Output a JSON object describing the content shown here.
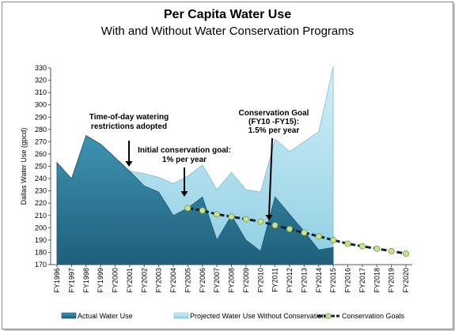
{
  "chart_data": {
    "type": "area",
    "title": "Per Capita Water Use",
    "subtitle": "With and Without Water Conservation Programs",
    "ylabel": "Dallas Water Use (gpcd)",
    "xlabel": "",
    "ylim": [
      170,
      330
    ],
    "yticks": [
      170,
      180,
      190,
      200,
      210,
      220,
      230,
      240,
      250,
      260,
      270,
      280,
      290,
      300,
      310,
      320,
      330
    ],
    "categories": [
      "FY1996",
      "FY1997",
      "FY1998",
      "FY1999",
      "FY2000",
      "FY2001",
      "FY2002",
      "FY2003",
      "FY2004",
      "FY2005",
      "FY2006",
      "FY2007",
      "FY2008",
      "FY2009",
      "FY2010",
      "FY2011",
      "FY2012",
      "FY2013",
      "FY2014",
      "FY2015",
      "FY2016",
      "FY2017",
      "FY2018",
      "FY2019",
      "FY2020"
    ],
    "series": [
      {
        "name": "Projected Water Use Without Conservation",
        "kind": "area",
        "color": "#a8dcec",
        "values": [
          253,
          240,
          275,
          268,
          257,
          246,
          244,
          241,
          236,
          242,
          251,
          231,
          245,
          231,
          229,
          272,
          262,
          270,
          278,
          331,
          null,
          null,
          null,
          null,
          null
        ]
      },
      {
        "name": "Actual Water Use",
        "kind": "area",
        "color": "#2e7f9e",
        "values": [
          253,
          240,
          275,
          268,
          257,
          246,
          234,
          229,
          210,
          216,
          225,
          190,
          210,
          190,
          181,
          225,
          211,
          197,
          182,
          184,
          null,
          null,
          null,
          null,
          null
        ]
      },
      {
        "name": "Conservation Goals",
        "kind": "line",
        "color": "#0f2238",
        "values": [
          null,
          null,
          null,
          null,
          null,
          null,
          null,
          null,
          null,
          216,
          214,
          211,
          209,
          207,
          205,
          202,
          199,
          196,
          193,
          190,
          187,
          185,
          183,
          181,
          179
        ]
      }
    ],
    "annotations": [
      {
        "lines": [
          "Time-of-day watering",
          "restrictions adopted"
        ]
      },
      {
        "lines": [
          "Initial conservation goal:",
          "1% per year"
        ]
      },
      {
        "lines": [
          "Conservation Goal",
          "(FY10 -FY15):",
          "1.5% per year"
        ]
      }
    ],
    "legend": {
      "position": "bottom"
    },
    "grid": false
  }
}
